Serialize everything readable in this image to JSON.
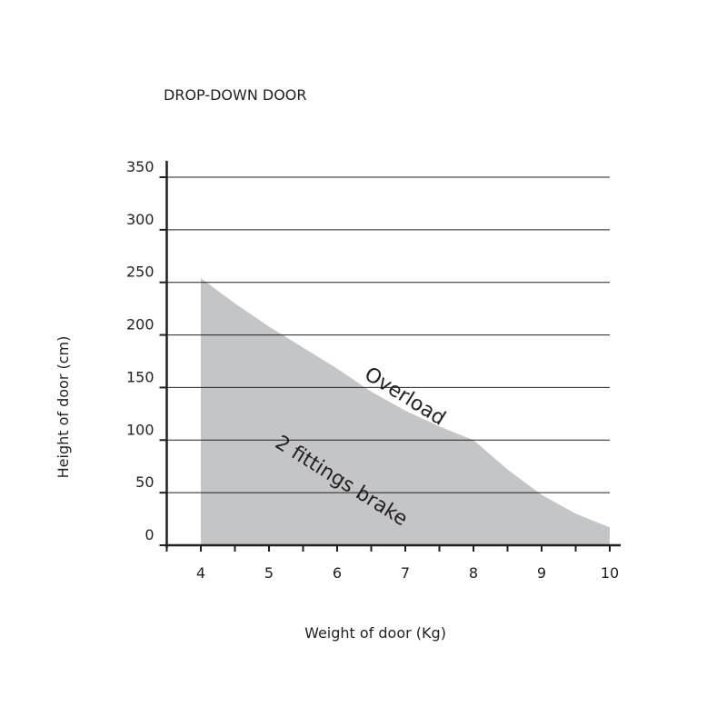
{
  "chart_data": {
    "type": "area",
    "title": "DROP-DOWN DOOR",
    "xlabel": "Weight of door (Kg)",
    "ylabel": "Height of door (cm)",
    "x": [
      4,
      4.5,
      5,
      5.5,
      6,
      6.5,
      7,
      7.5,
      8,
      8.5,
      9,
      9.5,
      10
    ],
    "series": [
      {
        "name": "2 fittings brake",
        "color": "#c4c5c7",
        "values": [
          254,
          230,
          208,
          188,
          168,
          146,
          128,
          113,
          100,
          72,
          48,
          30,
          17
        ]
      }
    ],
    "annotations": [
      "Overload"
    ],
    "xlim": [
      3.5,
      10
    ],
    "ylim": [
      0,
      350
    ],
    "xticks": [
      4,
      5,
      6,
      7,
      8,
      9,
      10
    ],
    "xminorticks": [
      3.5,
      4.5,
      5.5,
      6.5,
      7.5,
      8.5,
      9.5
    ],
    "yticks": [
      0,
      50,
      100,
      150,
      200,
      250,
      300,
      350
    ],
    "grid": true
  }
}
